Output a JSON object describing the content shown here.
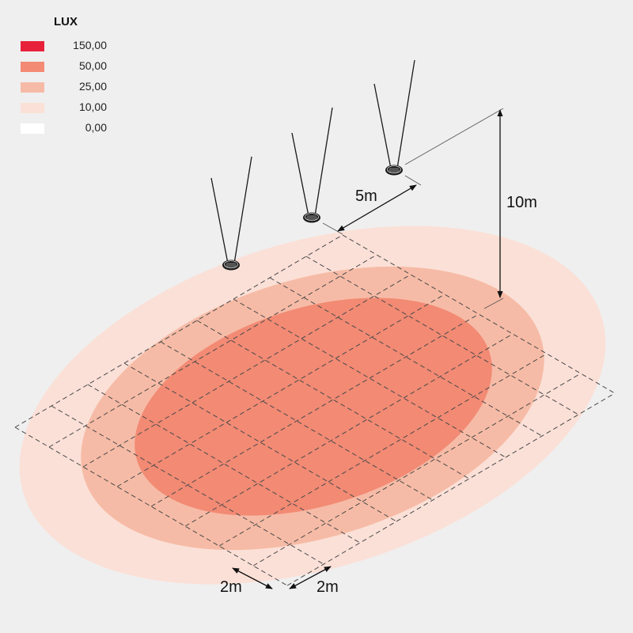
{
  "legend": {
    "title": "LUX",
    "items": [
      {
        "value": "150,00",
        "color": "#e8213a"
      },
      {
        "value": "50,00",
        "color": "#f28a74"
      },
      {
        "value": "25,00",
        "color": "#f6bba6"
      },
      {
        "value": "10,00",
        "color": "#fbe0d7"
      },
      {
        "value": "0,00",
        "color": "#ffffff"
      }
    ]
  },
  "dimensions": {
    "spacing": "5m",
    "height": "10m",
    "grid_a": "2m",
    "grid_b": "2m"
  },
  "icons": {
    "fixture": "high-bay-light-icon"
  }
}
